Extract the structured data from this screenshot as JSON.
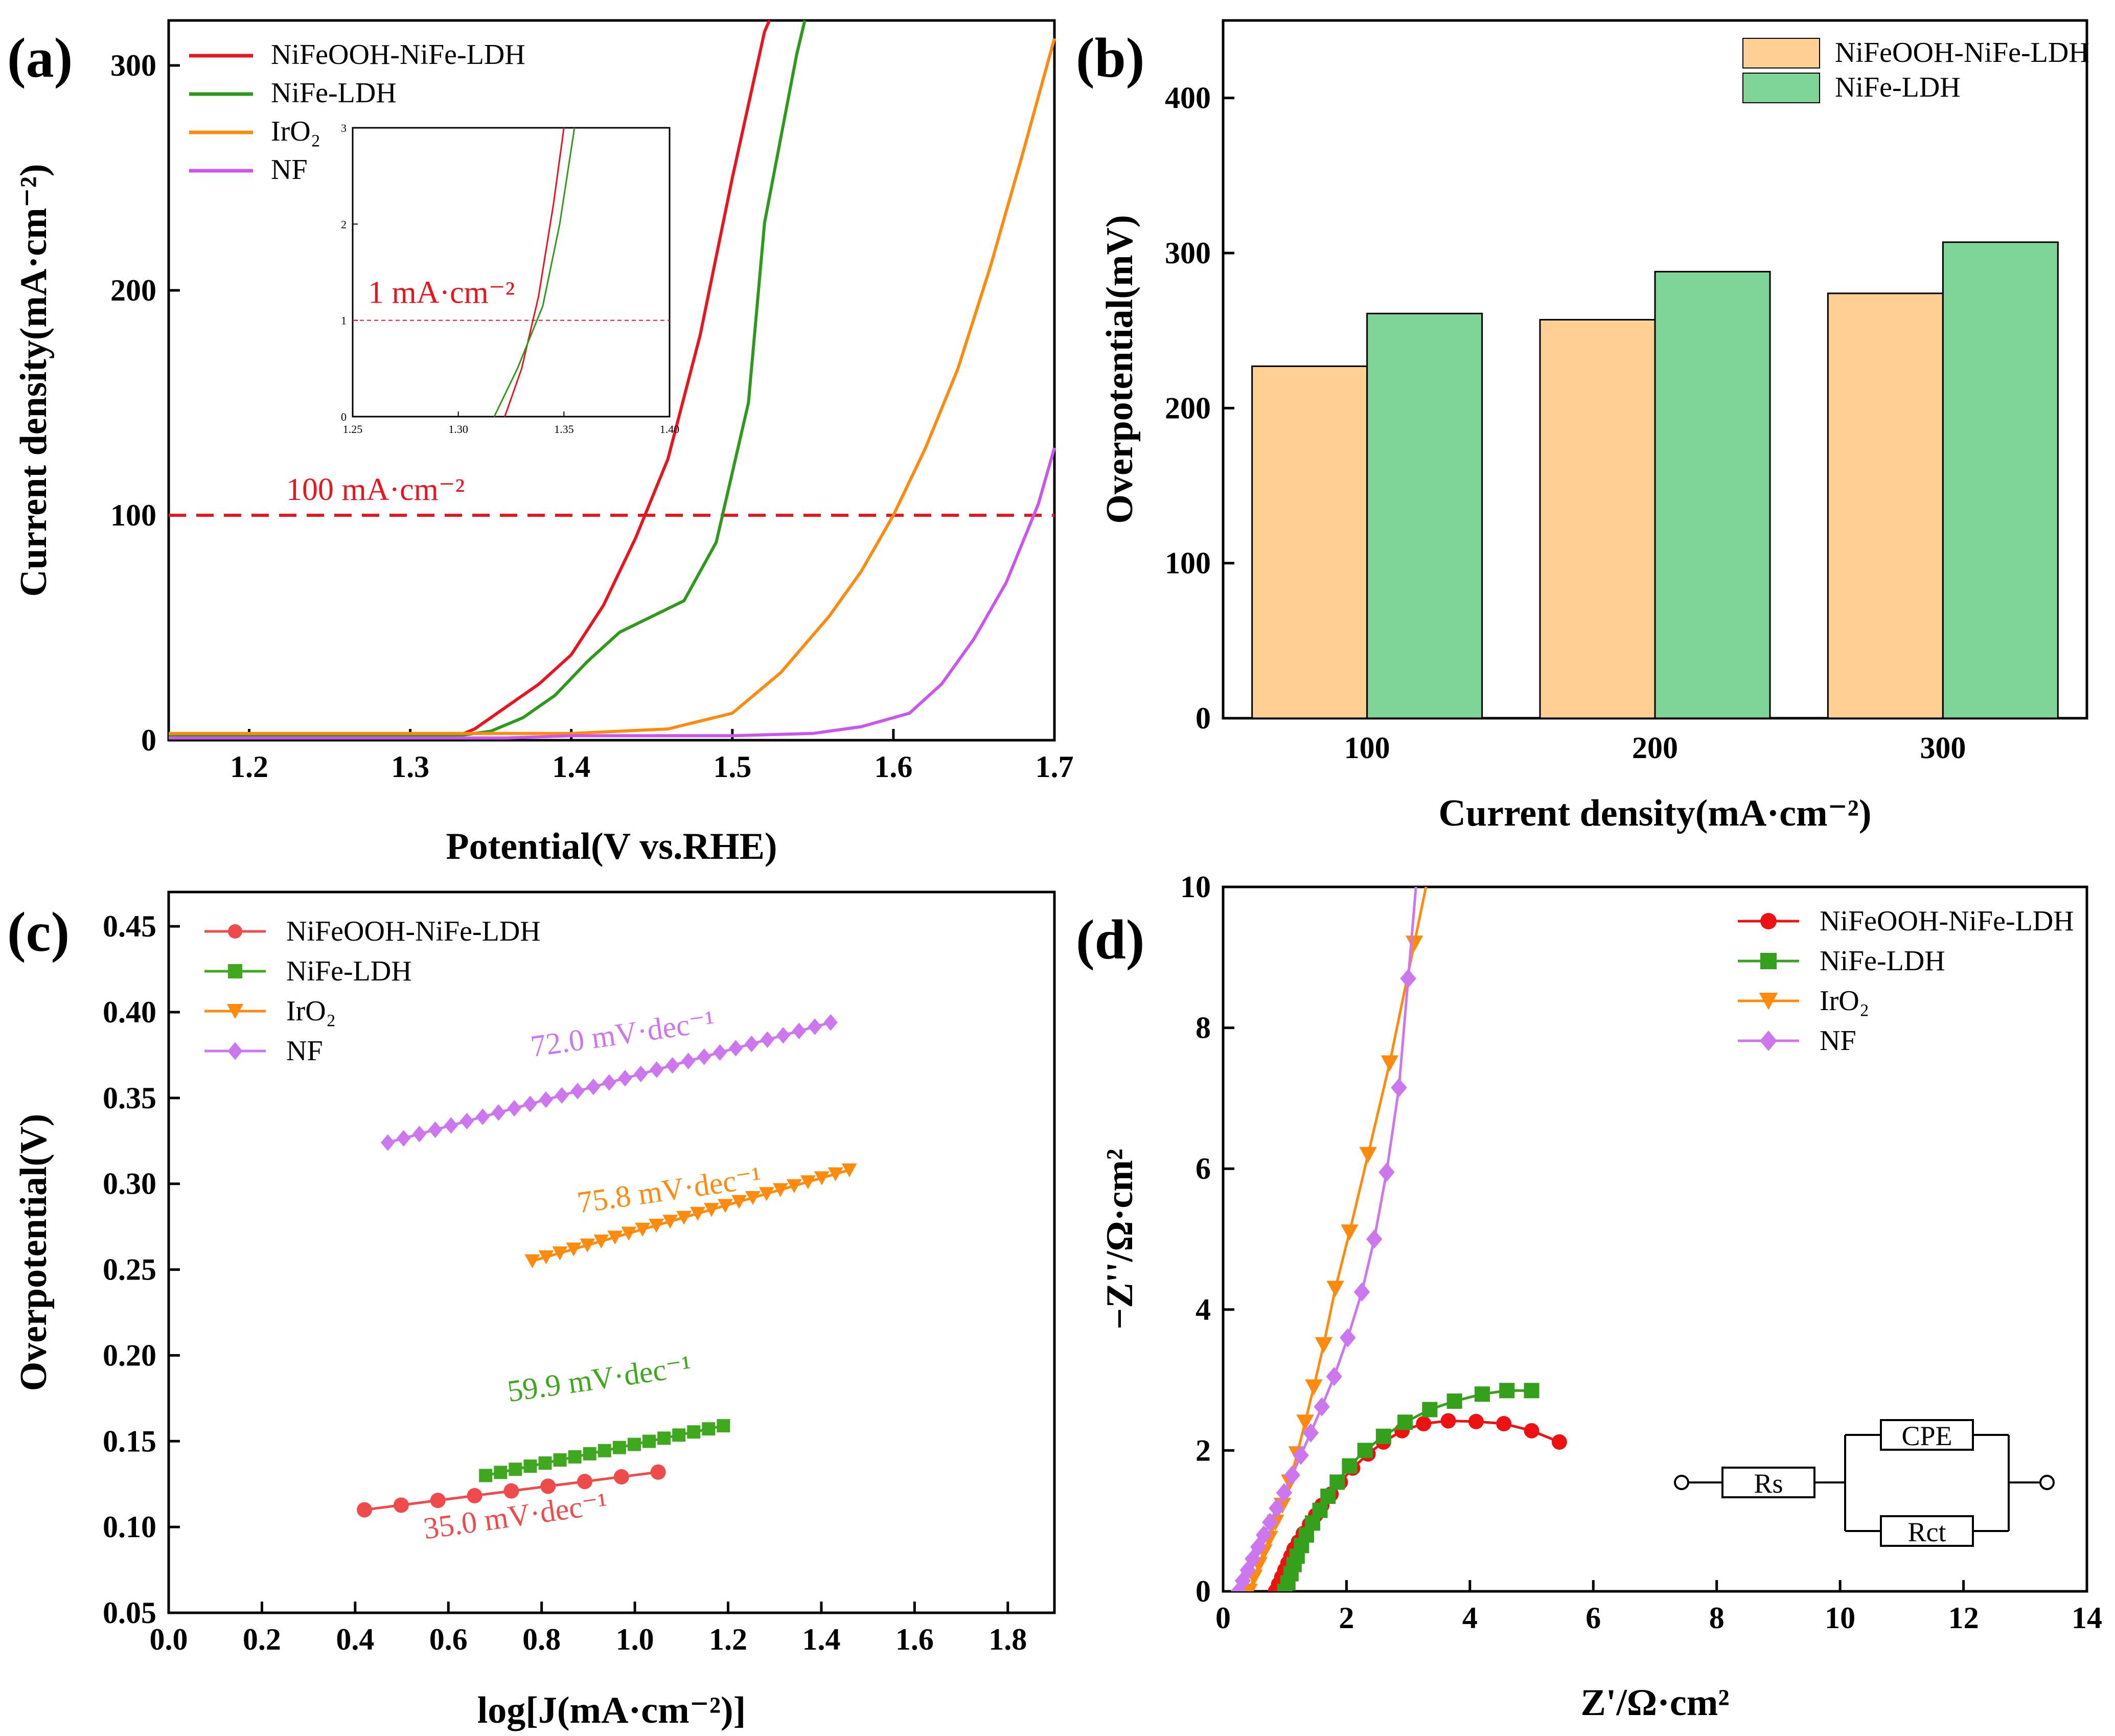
{
  "chart_data": [
    {
      "panel": "(a)",
      "type": "line",
      "xlabel": "Potential(V vs.RHE)",
      "ylabel": "Current density(mA·cm⁻²)",
      "xlim": [
        1.15,
        1.7
      ],
      "ylim": [
        0,
        320
      ],
      "xticks": [
        "1.2",
        "1.3",
        "1.4",
        "1.5",
        "1.6",
        "1.7"
      ],
      "yticks": [
        "0",
        "100",
        "200",
        "300"
      ],
      "legend": "top-left",
      "annotation": "100 mA·cm⁻²",
      "reference_y": 100,
      "series": [
        {
          "name": "NiFeOOH-NiFe-LDH",
          "color": "#e8141e",
          "x": [
            1.15,
            1.3,
            1.33,
            1.34,
            1.36,
            1.38,
            1.4,
            1.42,
            1.44,
            1.46,
            1.48,
            1.5,
            1.52,
            1.523
          ],
          "y": [
            2,
            2,
            2,
            5,
            15,
            25,
            38,
            60,
            90,
            125,
            180,
            250,
            315,
            320
          ]
        },
        {
          "name": "NiFe-LDH",
          "color": "#2d9a1c",
          "x": [
            1.15,
            1.33,
            1.35,
            1.37,
            1.39,
            1.41,
            1.43,
            1.45,
            1.47,
            1.49,
            1.51,
            1.52,
            1.54,
            1.545
          ],
          "y": [
            2,
            2,
            4,
            10,
            20,
            35,
            48,
            55,
            62,
            88,
            150,
            230,
            305,
            320
          ]
        },
        {
          "name": "IrO₂",
          "color": "#ff8a0e",
          "x": [
            1.15,
            1.4,
            1.46,
            1.5,
            1.53,
            1.56,
            1.58,
            1.6,
            1.62,
            1.64,
            1.66,
            1.68,
            1.7
          ],
          "y": [
            3,
            3,
            5,
            12,
            30,
            55,
            75,
            100,
            130,
            165,
            210,
            260,
            312
          ]
        },
        {
          "name": "NF",
          "color": "#cc55ee",
          "x": [
            1.15,
            1.36,
            1.4,
            1.45,
            1.5,
            1.55,
            1.58,
            1.61,
            1.63,
            1.65,
            1.67,
            1.69,
            1.7
          ],
          "y": [
            1,
            1,
            2,
            2,
            2,
            3,
            6,
            12,
            25,
            45,
            70,
            105,
            130
          ]
        }
      ],
      "inset": {
        "xlim": [
          1.25,
          1.4
        ],
        "ylim": [
          0,
          3
        ],
        "xticks": [
          "1.25",
          "1.30",
          "1.35",
          "1.40"
        ],
        "yticks": [
          "0",
          "1",
          "2",
          "3"
        ],
        "annotation": "1 mA·cm⁻²",
        "reference_y": 1,
        "series": [
          {
            "name": "NiFeOOH-NiFe-LDH",
            "color": "#e8141e",
            "x": [
              1.322,
              1.33,
              1.338,
              1.345,
              1.35
            ],
            "y": [
              0,
              0.5,
              1.25,
              2.2,
              3
            ]
          },
          {
            "name": "NiFe-LDH",
            "color": "#2d9a1c",
            "x": [
              1.317,
              1.328,
              1.34,
              1.348,
              1.355
            ],
            "y": [
              0,
              0.5,
              1.15,
              2.0,
              3
            ]
          }
        ]
      }
    },
    {
      "panel": "(b)",
      "type": "bar",
      "xlabel": "Current density(mA·cm⁻²)",
      "ylabel": "Overpotential(mV)",
      "categories": [
        "100",
        "200",
        "300"
      ],
      "ylim": [
        0,
        450
      ],
      "yticks": [
        "0",
        "100",
        "200",
        "300",
        "400"
      ],
      "legend": "top-right",
      "series": [
        {
          "name": "NiFeOOH-NiFe-LDH",
          "color": "#ffcf94",
          "values": [
            227,
            257,
            274
          ]
        },
        {
          "name": "NiFe-LDH",
          "color": "#7ed597",
          "values": [
            261,
            288,
            307
          ]
        }
      ]
    },
    {
      "panel": "(c)",
      "type": "scatter",
      "xlabel": "log[J(mA·cm⁻²)]",
      "ylabel": "Overpotential(V)",
      "xlim": [
        0.0,
        1.9
      ],
      "ylim": [
        0.05,
        0.47
      ],
      "xticks": [
        "0.0",
        "0.2",
        "0.4",
        "0.6",
        "0.8",
        "1.0",
        "1.2",
        "1.4",
        "1.6",
        "1.8"
      ],
      "yticks": [
        "0.05",
        "0.10",
        "0.15",
        "0.20",
        "0.25",
        "0.30",
        "0.35",
        "0.40",
        "0.45"
      ],
      "legend": "top-left",
      "series": [
        {
          "name": "NiFeOOH-NiFe-LDH",
          "color": "#f04b4b",
          "marker": "circle",
          "x_start": 0.42,
          "x_end": 1.05,
          "y_start": 0.11,
          "y_end": 0.132,
          "n": 9,
          "slope_label": "35.0 mV·dec⁻¹"
        },
        {
          "name": "NiFe-LDH",
          "color": "#3fa81f",
          "marker": "square",
          "x_start": 0.68,
          "x_end": 1.19,
          "y_start": 0.13,
          "y_end": 0.159,
          "n": 17,
          "slope_label": "59.9 mV·dec⁻¹"
        },
        {
          "name": "IrO₂",
          "color": "#ff8a0e",
          "marker": "triangle-down",
          "x_start": 0.78,
          "x_end": 1.46,
          "y_start": 0.255,
          "y_end": 0.308,
          "n": 24,
          "slope_label": "75.8 mV·dec⁻¹"
        },
        {
          "name": "NF",
          "color": "#cc77ee",
          "marker": "diamond",
          "x_start": 0.47,
          "x_end": 1.42,
          "y_start": 0.324,
          "y_end": 0.394,
          "n": 29,
          "slope_label": "72.0 mV·dec⁻¹"
        }
      ]
    },
    {
      "panel": "(d)",
      "type": "scatter",
      "xlabel": "Z'/Ω·cm²",
      "ylabel": "−Z''/Ω·cm²",
      "xlim": [
        0,
        14
      ],
      "ylim": [
        0,
        10
      ],
      "xticks": [
        "0",
        "2",
        "4",
        "6",
        "8",
        "10",
        "12",
        "14"
      ],
      "yticks": [
        "0",
        "2",
        "4",
        "6",
        "8",
        "10"
      ],
      "legend": "top-right",
      "circuit_labels": {
        "rs": "Rs",
        "cpe": "CPE",
        "rct": "Rct"
      },
      "series": [
        {
          "name": "NiFeOOH-NiFe-LDH",
          "color": "#ee1111",
          "marker": "circle",
          "x": [
            0.85,
            0.9,
            0.95,
            1.0,
            1.05,
            1.1,
            1.15,
            1.22,
            1.3,
            1.4,
            1.5,
            1.6,
            1.75,
            1.9,
            2.1,
            2.35,
            2.6,
            2.9,
            3.25,
            3.65,
            4.1,
            4.55,
            5.0,
            5.45
          ],
          "y": [
            0.0,
            0.1,
            0.2,
            0.3,
            0.4,
            0.5,
            0.6,
            0.7,
            0.82,
            0.95,
            1.08,
            1.22,
            1.38,
            1.55,
            1.75,
            1.95,
            2.12,
            2.28,
            2.38,
            2.42,
            2.41,
            2.38,
            2.28,
            2.12
          ]
        },
        {
          "name": "NiFe-LDH",
          "color": "#35a01b",
          "marker": "square",
          "x": [
            1.0,
            1.05,
            1.1,
            1.15,
            1.2,
            1.27,
            1.35,
            1.45,
            1.57,
            1.7,
            1.85,
            2.05,
            2.3,
            2.6,
            2.95,
            3.35,
            3.75,
            4.2,
            4.6,
            5.0
          ],
          "y": [
            0.0,
            0.12,
            0.25,
            0.38,
            0.5,
            0.65,
            0.8,
            0.97,
            1.15,
            1.35,
            1.55,
            1.78,
            2.0,
            2.2,
            2.4,
            2.58,
            2.7,
            2.8,
            2.85,
            2.85
          ]
        },
        {
          "name": "IrO₂",
          "color": "#ff8a0e",
          "marker": "triangle-down",
          "x": [
            0.42,
            0.5,
            0.58,
            0.66,
            0.75,
            0.85,
            0.96,
            1.08,
            1.2,
            1.33,
            1.47,
            1.63,
            1.82,
            2.05,
            2.35,
            2.7,
            3.1
          ],
          "y": [
            0.0,
            0.2,
            0.38,
            0.56,
            0.75,
            0.98,
            1.22,
            1.55,
            1.95,
            2.4,
            2.9,
            3.5,
            4.3,
            5.1,
            6.2,
            7.5,
            9.2
          ]
        },
        {
          "name": "NF",
          "color": "#cc77ee",
          "marker": "diamond",
          "x": [
            0.25,
            0.32,
            0.4,
            0.48,
            0.57,
            0.66,
            0.76,
            0.87,
            0.99,
            1.12,
            1.26,
            1.42,
            1.6,
            1.8,
            2.02,
            2.25,
            2.45,
            2.65,
            2.85,
            3.0
          ],
          "y": [
            0.0,
            0.15,
            0.3,
            0.46,
            0.63,
            0.8,
            0.98,
            1.18,
            1.4,
            1.65,
            1.93,
            2.25,
            2.62,
            3.05,
            3.6,
            4.25,
            5.0,
            5.95,
            7.15,
            8.7
          ]
        }
      ]
    }
  ]
}
